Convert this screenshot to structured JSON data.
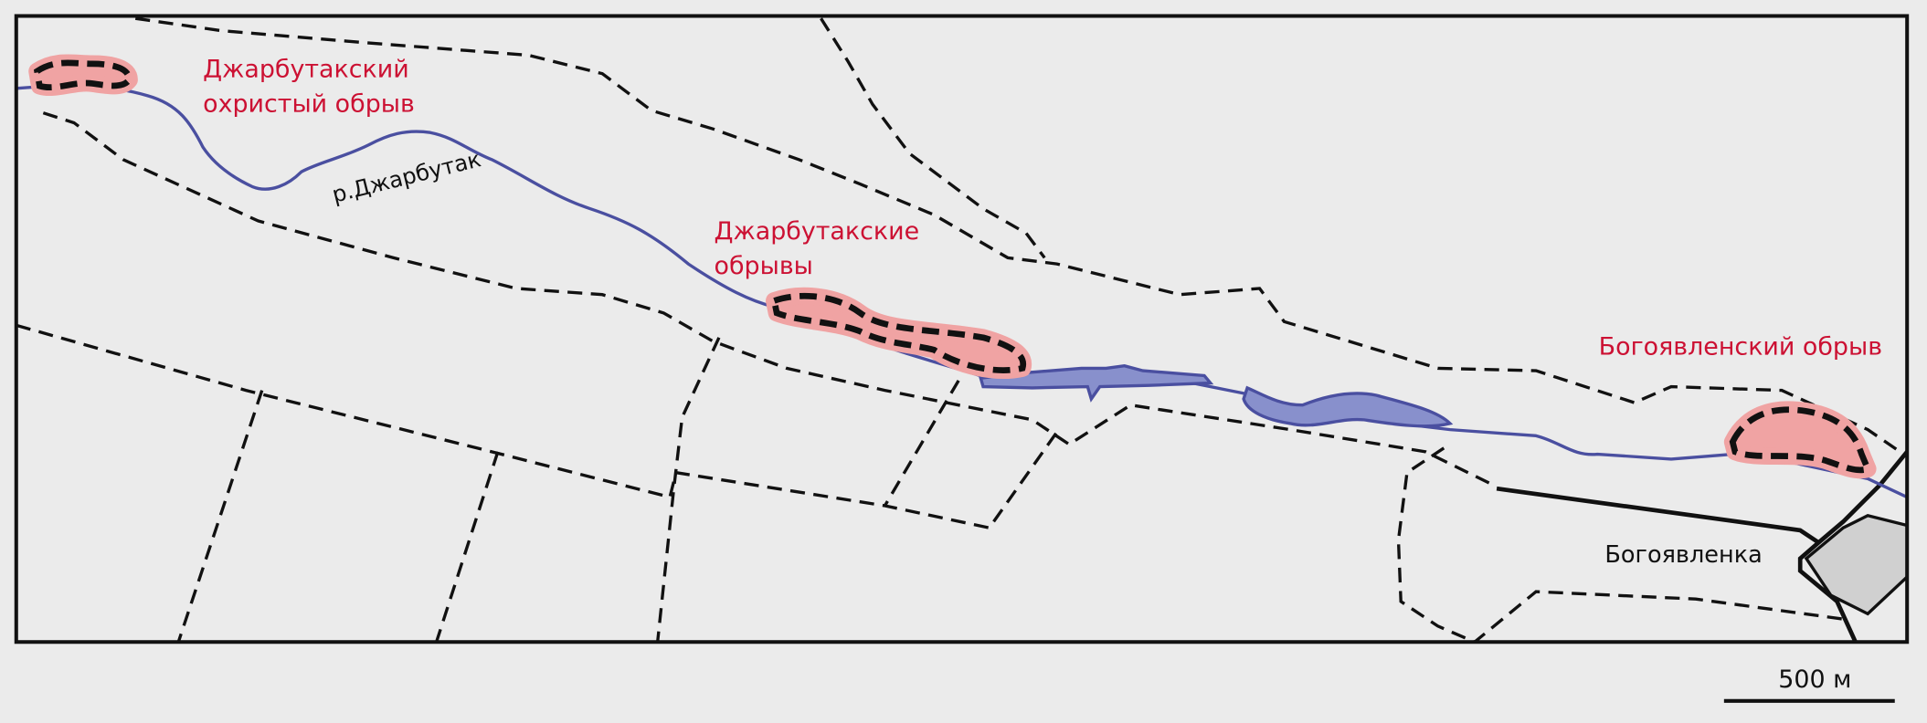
{
  "sites": [
    {
      "lines": [
        "Джарбутакский",
        "охристый обрыв"
      ]
    },
    {
      "lines": [
        "Джарбутакские",
        "обрывы"
      ]
    },
    {
      "lines": [
        "Богоявленский обрыв"
      ]
    }
  ],
  "river": "р.Джарбутак",
  "settlement": "Богоявленка",
  "scale_bar": "500 м"
}
